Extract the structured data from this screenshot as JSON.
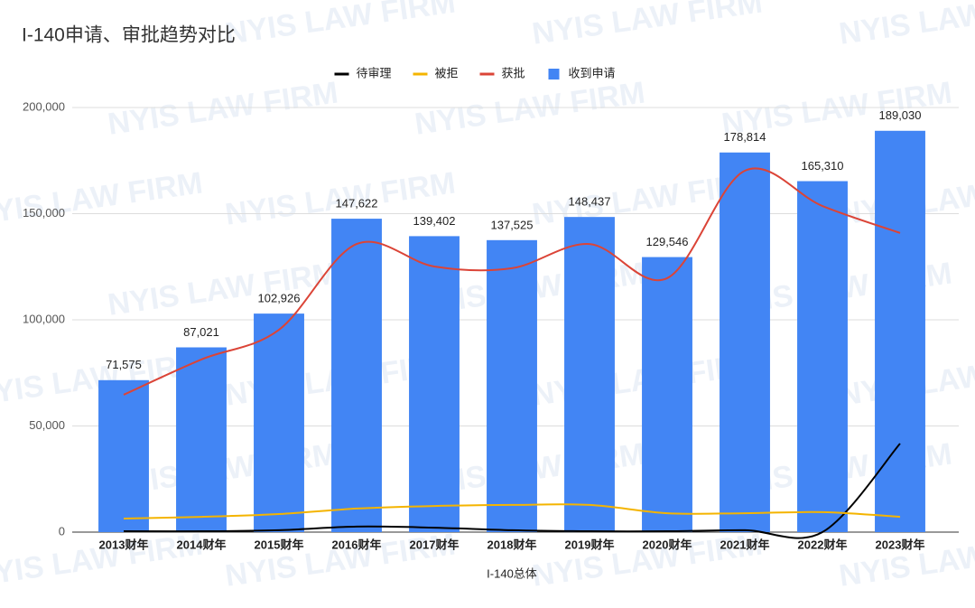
{
  "chart_data": {
    "type": "bar",
    "title": "I-140申请、审批趋势对比",
    "watermark": "NYIS LAW FIRM",
    "x_label": "I-140总体",
    "categories": [
      "2013财年",
      "2014财年",
      "2015财年",
      "2016财年",
      "2017财年",
      "2018财年",
      "2019财年",
      "2020财年",
      "2021财年",
      "2022财年",
      "2023财年"
    ],
    "series": [
      {
        "name": "待审理",
        "type": "line",
        "color": "#000000",
        "values": [
          400,
          400,
          900,
          2600,
          2100,
          900,
          400,
          400,
          900,
          0,
          41700
        ]
      },
      {
        "name": "被拒",
        "type": "line",
        "color": "#f4b400",
        "values": [
          6400,
          7200,
          8500,
          11100,
          12300,
          12800,
          12800,
          8900,
          8900,
          9400,
          7200
        ]
      },
      {
        "name": "获批",
        "type": "line",
        "color": "#db4437",
        "values": [
          64700,
          81300,
          95300,
          135700,
          125100,
          124300,
          135700,
          119600,
          170200,
          153600,
          140900
        ]
      },
      {
        "name": "收到申请",
        "type": "bar",
        "color": "#4285f4",
        "values": [
          71575,
          87021,
          102926,
          147622,
          139402,
          137525,
          148437,
          129546,
          178814,
          165310,
          189030
        ],
        "value_labels": [
          "71,575",
          "87,021",
          "102,926",
          "147,622",
          "139,402",
          "137,525",
          "148,437",
          "129,546",
          "178,814",
          "165,310",
          "189,030"
        ]
      }
    ],
    "ylim": [
      0,
      200000
    ],
    "yticks": [
      0,
      {
        "value": 50000,
        "label": "50,000"
      },
      {
        "value": 100000,
        "label": "100,000"
      },
      {
        "value": 150000,
        "label": "150,000"
      },
      {
        "value": 200000,
        "label": "200,000"
      }
    ],
    "grid": true,
    "legend": "top"
  }
}
